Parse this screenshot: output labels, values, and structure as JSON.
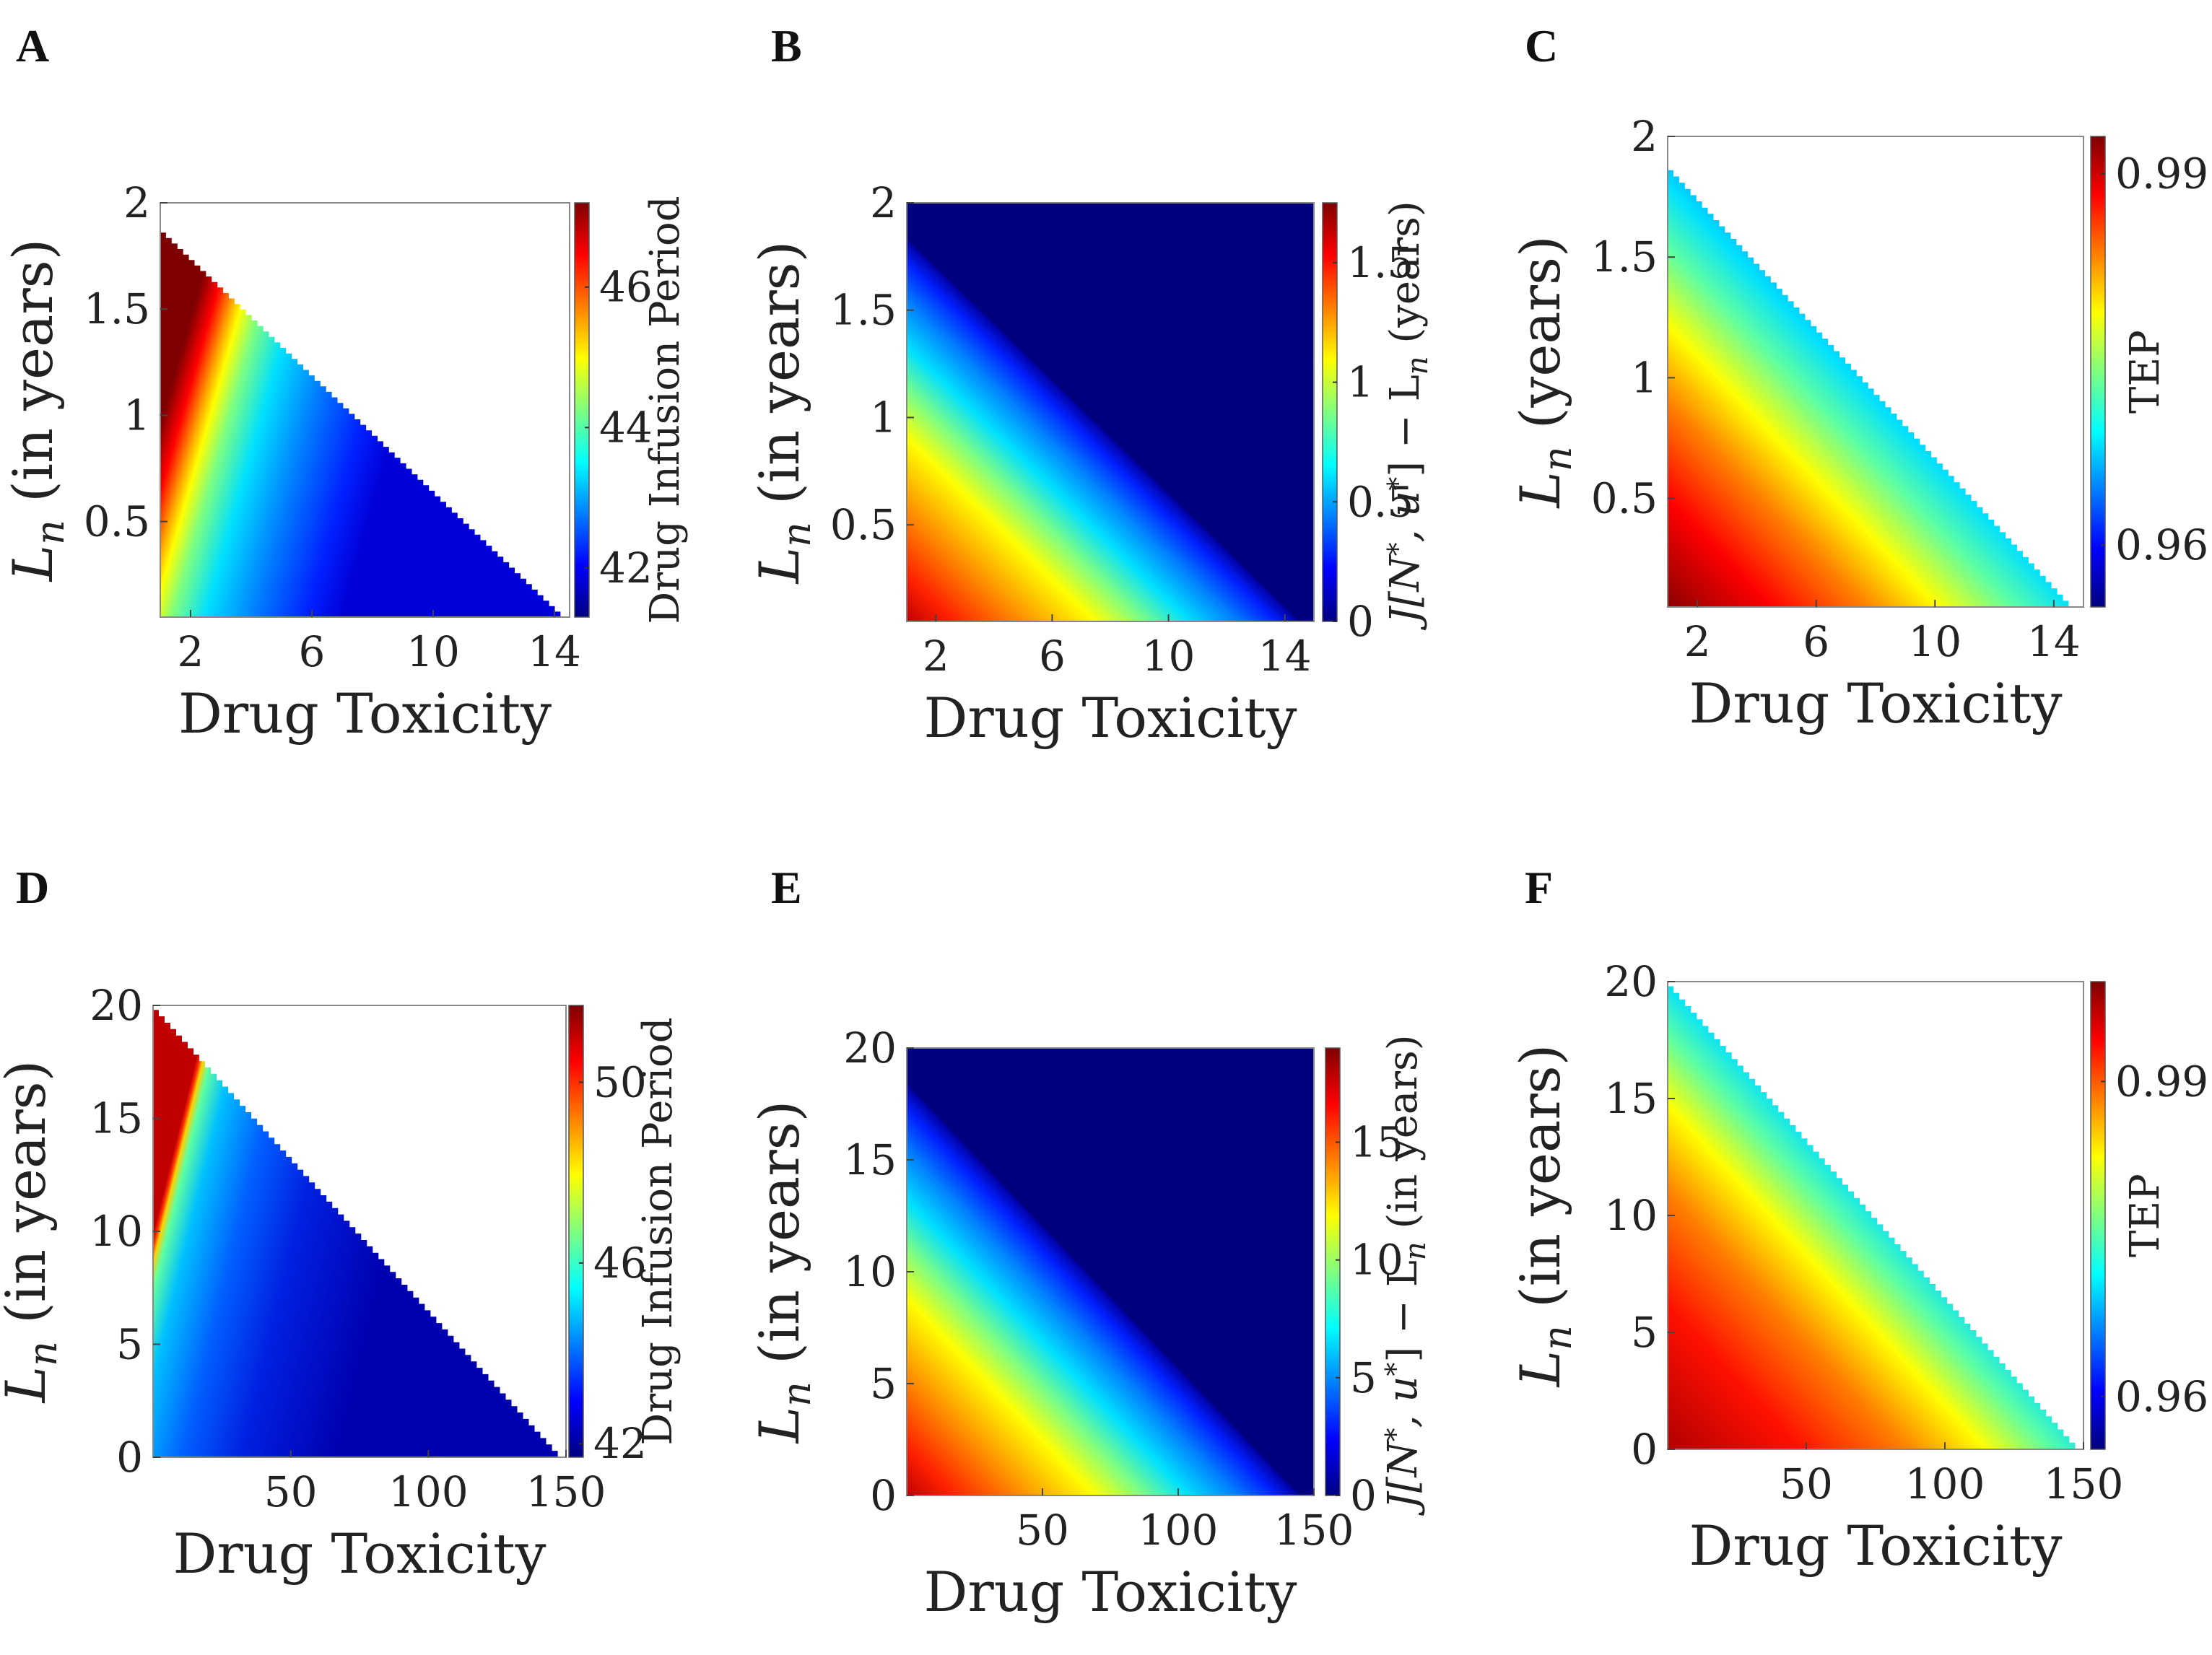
{
  "colormap": [
    "#00007f",
    "#0000ff",
    "#007fff",
    "#00ffff",
    "#7fff7f",
    "#ffff00",
    "#ff7f00",
    "#ff0000",
    "#7f0000"
  ],
  "chart_data": [
    {
      "panel": "A",
      "type": "heatmap",
      "xlabel": "Drug Toxicity",
      "ylabel": "L_n (in years)",
      "ylabel_var": "L",
      "ylabel_sub": "n",
      "ylabel_rest": " (in years)",
      "x_ticks": [
        2,
        6,
        10,
        14
      ],
      "y_ticks": [
        0.5,
        1,
        1.5,
        2
      ],
      "xlim": [
        1,
        14.5
      ],
      "ylim": [
        0.05,
        2
      ],
      "feasible_region": "below line from (1, 1.86) to (14.2, 0.05)",
      "colorbar": {
        "label": "Drug Infusion Period",
        "ticks": [
          42,
          44,
          46
        ],
        "range": [
          41.3,
          47.2
        ]
      }
    },
    {
      "panel": "B",
      "type": "heatmap",
      "xlabel": "Drug Toxicity",
      "ylabel": "L_n (in years)",
      "ylabel_var": "L",
      "ylabel_sub": "n",
      "ylabel_rest": " (in years)",
      "x_ticks": [
        2,
        6,
        10,
        14
      ],
      "y_ticks": [
        0.5,
        1,
        1.5,
        2
      ],
      "xlim": [
        1,
        15
      ],
      "ylim": [
        0.05,
        2
      ],
      "colorbar": {
        "label": "J[N*, u*] − L_n (years)",
        "label_parts": [
          "J[N",
          "*",
          ", u",
          "*",
          "] − L",
          "n",
          " (years)"
        ],
        "ticks": [
          0,
          0.5,
          1,
          1.5
        ],
        "range": [
          0,
          1.75
        ]
      }
    },
    {
      "panel": "C",
      "type": "heatmap",
      "xlabel": "Drug Toxicity",
      "ylabel": "L_n (years)",
      "ylabel_var": "L",
      "ylabel_sub": "n",
      "ylabel_rest": " (years)",
      "x_ticks": [
        2,
        6,
        10,
        14
      ],
      "y_ticks": [
        0.5,
        1,
        1.5,
        2
      ],
      "xlim": [
        1,
        15
      ],
      "ylim": [
        0.05,
        2
      ],
      "colorbar": {
        "label": "TEP",
        "ticks": [
          0.96,
          0.99
        ],
        "range": [
          0.955,
          0.993
        ]
      }
    },
    {
      "panel": "D",
      "type": "heatmap",
      "xlabel": "Drug Toxicity",
      "ylabel": "L_n (in years)",
      "ylabel_var": "L",
      "ylabel_sub": "n",
      "ylabel_rest": " (in years)",
      "x_ticks": [
        50,
        100,
        150
      ],
      "y_ticks": [
        0,
        5,
        10,
        15,
        20
      ],
      "xlim": [
        0,
        150
      ],
      "ylim": [
        0,
        20
      ],
      "colorbar": {
        "label": "Drug Infusion Period",
        "ticks": [
          42,
          46,
          50
        ],
        "range": [
          41.7,
          51.7
        ]
      }
    },
    {
      "panel": "E",
      "type": "heatmap",
      "xlabel": "Drug Toxicity",
      "ylabel": "L_n (in years)",
      "ylabel_var": "L",
      "ylabel_sub": "n",
      "ylabel_rest": " (in years)",
      "x_ticks": [
        50,
        100,
        150
      ],
      "y_ticks": [
        0,
        5,
        10,
        15,
        20
      ],
      "xlim": [
        0,
        150
      ],
      "ylim": [
        0,
        20
      ],
      "colorbar": {
        "label": "J[N*, u*] − L_n (in years)",
        "label_parts": [
          "J[N",
          "*",
          ", u",
          "*",
          "] − L",
          "n",
          " (in years)"
        ],
        "ticks": [
          0,
          5,
          10,
          15
        ],
        "range": [
          0,
          19
        ]
      }
    },
    {
      "panel": "F",
      "type": "heatmap",
      "xlabel": "Drug Toxicity",
      "ylabel": "L_n (in years)",
      "ylabel_var": "L",
      "ylabel_sub": "n",
      "ylabel_rest": " (in years)",
      "x_ticks": [
        50,
        100,
        150
      ],
      "y_ticks": [
        0,
        5,
        10,
        15,
        20
      ],
      "xlim": [
        0,
        150
      ],
      "ylim": [
        0,
        20
      ],
      "colorbar": {
        "label": "TEP",
        "ticks": [
          0.96,
          0.99
        ],
        "range": [
          0.955,
          0.9995
        ]
      }
    }
  ]
}
